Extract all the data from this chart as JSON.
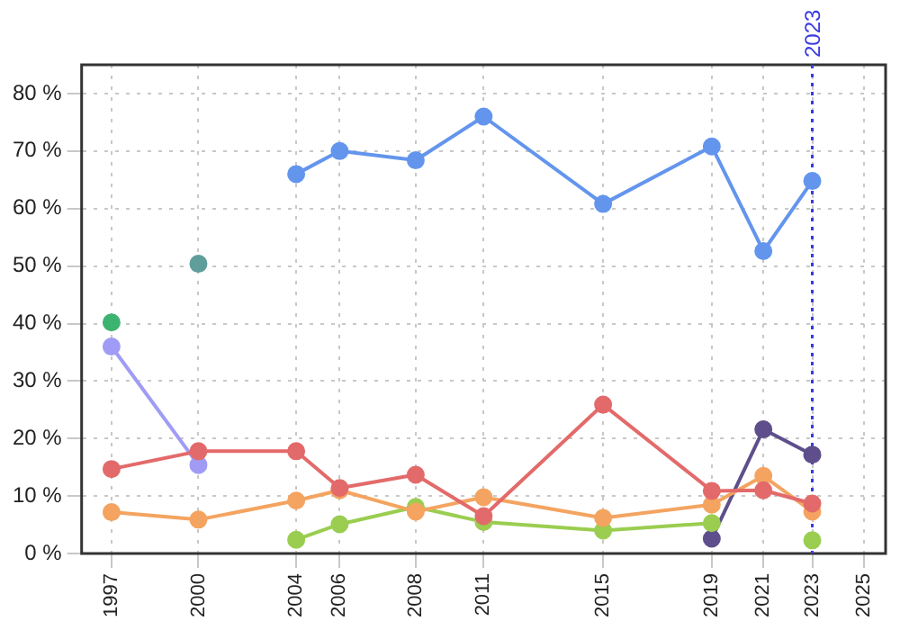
{
  "chart_data": {
    "type": "line",
    "x": [
      1997.3,
      2000.5,
      2004.1,
      2005.7,
      2008.5,
      2011,
      2015.4,
      2019.4,
      2021.3,
      2023.1
    ],
    "series": [
      {
        "color": "#6495ed",
        "values": [
          null,
          null,
          66,
          70,
          68.4,
          76,
          60.8,
          70.8,
          52.6,
          64.8
        ]
      },
      {
        "color": "#e36a6a",
        "values": [
          14.7,
          17.8,
          17.8,
          11.4,
          13.7,
          6.5,
          25.9,
          10.9,
          11,
          8.7
        ]
      },
      {
        "color": "#f4a460",
        "values": [
          7.2,
          5.9,
          9.2,
          11,
          7.3,
          9.8,
          6.2,
          8.5,
          13.5,
          7.3
        ]
      },
      {
        "color": "#9acd50",
        "values": [
          null,
          null,
          2.4,
          5.1,
          8.1,
          5.5,
          4,
          5.3,
          null,
          2.3
        ]
      },
      {
        "color": "#a09cf5",
        "values": [
          36,
          15.4,
          null,
          null,
          null,
          null,
          null,
          null,
          null,
          null
        ]
      },
      {
        "color": "#3cb371",
        "values": [
          40.2,
          null,
          null,
          null,
          null,
          null,
          null,
          null,
          null,
          null
        ]
      },
      {
        "color": "#5f9e9a",
        "values": [
          null,
          50.4,
          null,
          null,
          null,
          null,
          null,
          null,
          null,
          null
        ]
      },
      {
        "color": "#5e4f8c",
        "values": [
          null,
          null,
          null,
          null,
          null,
          null,
          null,
          2.6,
          21.6,
          17.2
        ]
      }
    ],
    "xlim": [
      1996.2,
      2025.8
    ],
    "xticks": [
      {
        "value": 1997.3,
        "label": "1997"
      },
      {
        "value": 2000.5,
        "label": "2000"
      },
      {
        "value": 2004.1,
        "label": "2004"
      },
      {
        "value": 2005.7,
        "label": "2006"
      },
      {
        "value": 2008.5,
        "label": "2008"
      },
      {
        "value": 2011,
        "label": "2011"
      },
      {
        "value": 2015.4,
        "label": "2015"
      },
      {
        "value": 2019.4,
        "label": "2019"
      },
      {
        "value": 2021.3,
        "label": "2021"
      },
      {
        "value": 2023.1,
        "label": "2023"
      },
      {
        "value": 2025,
        "label": "2025"
      }
    ],
    "ylim": [
      0,
      85
    ],
    "yticks": [
      {
        "value": 0,
        "label": "0 %"
      },
      {
        "value": 10,
        "label": "10 %"
      },
      {
        "value": 20,
        "label": "20 %"
      },
      {
        "value": 30,
        "label": "30 %"
      },
      {
        "value": 40,
        "label": "40 %"
      },
      {
        "value": 50,
        "label": "50 %"
      },
      {
        "value": 60,
        "label": "60 %"
      },
      {
        "value": 70,
        "label": "70 %"
      },
      {
        "value": 80,
        "label": "80 %"
      }
    ],
    "ref_lines": [
      {
        "axis": "x",
        "value": 2023.1,
        "label": "2023",
        "color": "#3a3ae0",
        "line_style": "dotted"
      }
    ],
    "grid": true,
    "legend": false,
    "marker": "circle",
    "line_style": "solid"
  }
}
